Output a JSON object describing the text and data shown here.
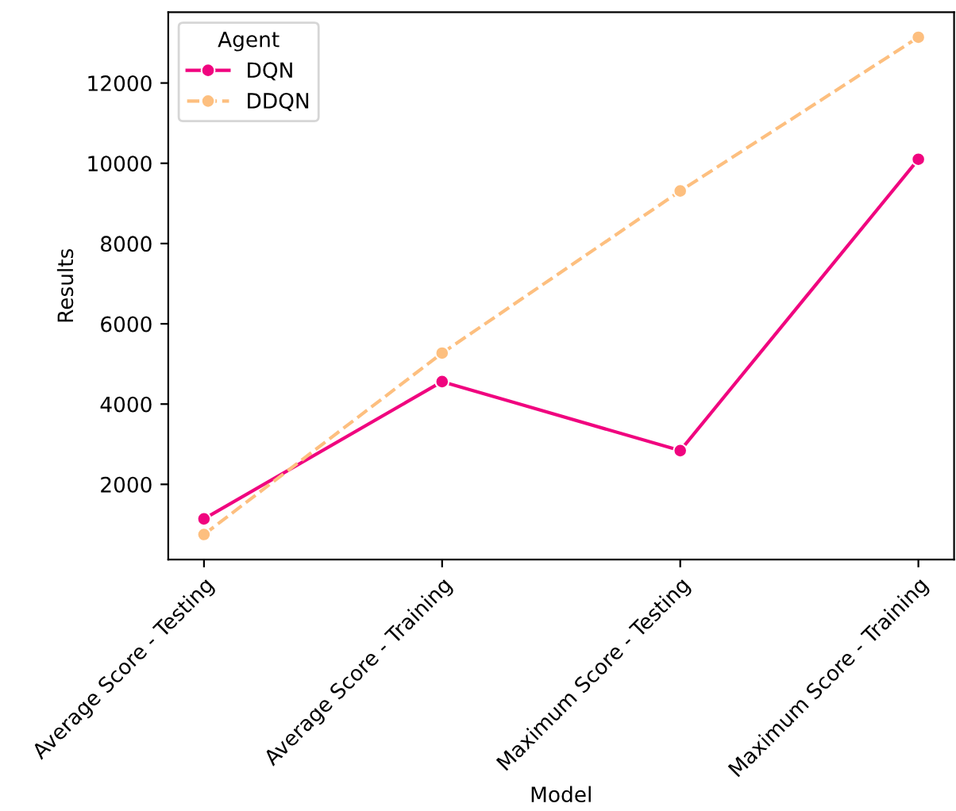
{
  "chart_data": {
    "type": "line",
    "xlabel": "Model",
    "ylabel": "Results",
    "legend_title": "Agent",
    "categories": [
      "Average Score - Testing",
      "Average Score - Training",
      "Maximum Score - Testing",
      "Maximum Score - Training"
    ],
    "series": [
      {
        "name": "DQN",
        "color": "#f0047f",
        "line_style": "solid",
        "values": [
          1140,
          4560,
          2840,
          10100
        ]
      },
      {
        "name": "DDQN",
        "color": "#fdbf7f",
        "line_style": "dashed",
        "values": [
          750,
          5270,
          9310,
          13140
        ]
      }
    ],
    "ylim": [
      125,
      13765
    ],
    "yticks": [
      2000,
      4000,
      6000,
      8000,
      10000,
      12000
    ],
    "marker": "circle",
    "grid": false,
    "legend": "top left"
  }
}
